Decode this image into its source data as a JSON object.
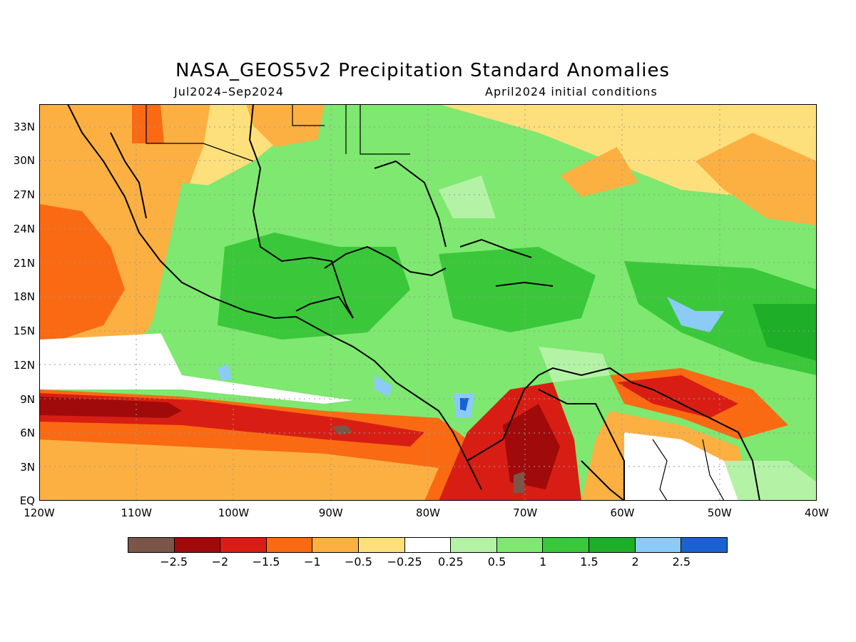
{
  "title": "NASA_GEOS5v2 Precipitation Standard Anomalies",
  "period": "Jul2024–Sep2024",
  "init": "April2024 initial conditions",
  "y_labels": [
    "33N",
    "30N",
    "27N",
    "24N",
    "21N",
    "18N",
    "15N",
    "12N",
    "9N",
    "6N",
    "3N",
    "EQ"
  ],
  "x_labels": [
    "120W",
    "110W",
    "100W",
    "90W",
    "80W",
    "70W",
    "60W",
    "50W",
    "40W"
  ],
  "colorbar": {
    "colors": [
      "#7a5548",
      "#a00a0a",
      "#d81e14",
      "#fa6a12",
      "#fcb042",
      "#fde07c",
      "#ffffff",
      "#b4f2a6",
      "#7ee870",
      "#3ac83a",
      "#1fae28",
      "#8ccaf8",
      "#1a62d2"
    ],
    "labels": [
      "−2.5",
      "−2",
      "−1.5",
      "−1",
      "−0.5",
      "−0.25",
      "0.25",
      "0.5",
      "1",
      "1.5",
      "2",
      "2.5"
    ]
  },
  "map": {
    "lon_range": [
      -120,
      -40
    ],
    "lat_range": [
      0,
      35
    ],
    "regions": [
      {
        "level": "-0.5",
        "color": "#fcb042"
      },
      {
        "level": "-1",
        "color": "#fa6a12"
      },
      {
        "level": "-1.5",
        "color": "#d81e14"
      },
      {
        "level": "-2",
        "color": "#a00a0a"
      },
      {
        "level": "-2.5",
        "color": "#7a5548"
      },
      {
        "level": "-0.25",
        "color": "#fde07c"
      },
      {
        "level": "0.25",
        "color": "#ffffff"
      },
      {
        "level": "0.5",
        "color": "#b4f2a6"
      },
      {
        "level": "1",
        "color": "#7ee870"
      },
      {
        "level": "1.5",
        "color": "#3ac83a"
      },
      {
        "level": "2",
        "color": "#1fae28"
      },
      {
        "level": "2.5",
        "color": "#8ccaf8"
      },
      {
        "level": ">2.5",
        "color": "#1a62d2"
      }
    ]
  }
}
